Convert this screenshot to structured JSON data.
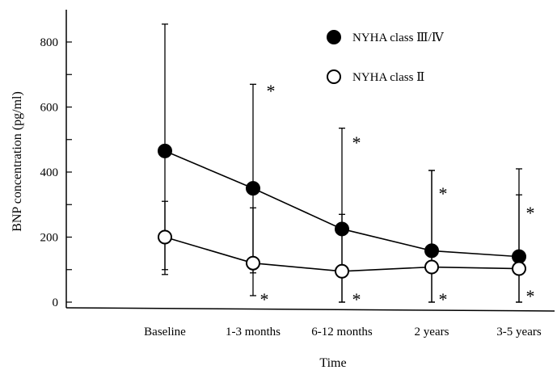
{
  "chart_data": {
    "type": "line",
    "title": "",
    "xlabel": "Time",
    "ylabel": "BNP concentration (pg/ml)",
    "categories": [
      "Baseline",
      "1-3 months",
      "6-12 months",
      "2 years",
      "3-5 years"
    ],
    "y_ticks": [
      "0",
      "200",
      "400",
      "600",
      "800"
    ],
    "ylim": [
      0,
      860
    ],
    "grid": false,
    "legend_position": "top-right",
    "series": [
      {
        "name": "NYHA class Ⅲ/Ⅳ",
        "marker": "filled-circle",
        "values": [
          465,
          350,
          225,
          158,
          140
        ],
        "error_upper": [
          855,
          670,
          535,
          405,
          410
        ],
        "error_lower": [
          100,
          90,
          0,
          0,
          0
        ],
        "significance": [
          "",
          "*",
          "*",
          "*",
          "*"
        ]
      },
      {
        "name": "NYHA class Ⅱ",
        "marker": "open-circle",
        "values": [
          200,
          120,
          95,
          108,
          103
        ],
        "error_upper": [
          310,
          290,
          270,
          405,
          330
        ],
        "error_lower": [
          85,
          20,
          0,
          0,
          0
        ],
        "significance": [
          "",
          "*",
          "*",
          "*",
          "*"
        ]
      }
    ]
  },
  "colors": {
    "line": "#000000",
    "marker_fill_filled": "#000000",
    "marker_fill_open": "#ffffff"
  }
}
